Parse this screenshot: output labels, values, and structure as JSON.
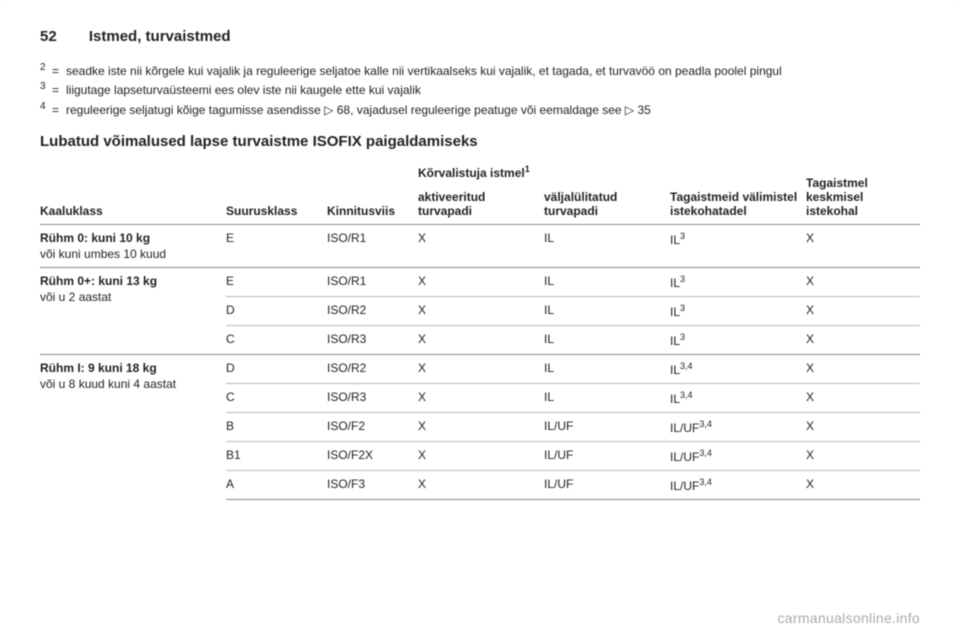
{
  "header": {
    "page_number": "52",
    "title": "Istmed, turvaistmed"
  },
  "footnotes": [
    {
      "sup": "2",
      "text": "seadke iste nii kõrgele kui vajalik ja reguleerige seljatoe kalle nii vertikaalseks kui vajalik, et tagada, et turvavöö on peadla poolel pingul"
    },
    {
      "sup": "3",
      "text": "liigutage lapseturvaüsteemi ees olev iste nii kaugele ette kui vajalik"
    },
    {
      "sup": "4",
      "text": "reguleerige seljatugi kõige tagumisse asendisse ▷ 68, vajadusel reguleerige peatuge või eemaldage see ▷ 35"
    }
  ],
  "subheading": "Lubatud võimalused lapse turvaistme ISOFIX paigaldamiseks",
  "table": {
    "head": {
      "weight": "Kaaluklass",
      "size": "Suurusklass",
      "fixture": "Kinnitusviis",
      "front_group": "Kõrvalistuja istmel",
      "front_group_sup": "1",
      "front_off": "aktiveeritud turvapadi",
      "front_on": "väljalülitatud turvapadi",
      "rear_outer": "Tagaistmeid välimistel istekohatadel",
      "rear_center": "Tagaistmel keskmisel istekohal"
    },
    "groups": [
      {
        "label": "Rühm 0: kuni 10 kg",
        "sublabel": "või kuni umbes 10 kuud",
        "rows": [
          {
            "size": "E",
            "fix": "ISO/R1",
            "f1": "X",
            "f2": "IL",
            "r1": "IL",
            "r1_sup": "3",
            "r2": "X"
          }
        ]
      },
      {
        "label": "Rühm 0+: kuni 13 kg",
        "sublabel": "või u 2 aastat",
        "rows": [
          {
            "size": "E",
            "fix": "ISO/R1",
            "f1": "X",
            "f2": "IL",
            "r1": "IL",
            "r1_sup": "3",
            "r2": "X"
          },
          {
            "size": "D",
            "fix": "ISO/R2",
            "f1": "X",
            "f2": "IL",
            "r1": "IL",
            "r1_sup": "3",
            "r2": "X"
          },
          {
            "size": "C",
            "fix": "ISO/R3",
            "f1": "X",
            "f2": "IL",
            "r1": "IL",
            "r1_sup": "3",
            "r2": "X"
          }
        ]
      },
      {
        "label": "Rühm I: 9 kuni 18 kg",
        "sublabel": "või u 8 kuud kuni 4 aastat",
        "rows": [
          {
            "size": "D",
            "fix": "ISO/R2",
            "f1": "X",
            "f2": "IL",
            "r1": "IL",
            "r1_sup": "3,4",
            "r2": "X"
          },
          {
            "size": "C",
            "fix": "ISO/R3",
            "f1": "X",
            "f2": "IL",
            "r1": "IL",
            "r1_sup": "3,4",
            "r2": "X"
          },
          {
            "size": "B",
            "fix": "ISO/F2",
            "f1": "X",
            "f2": "IL/UF",
            "r1": "IL/UF",
            "r1_sup": "3,4",
            "r2": "X"
          },
          {
            "size": "B1",
            "fix": "ISO/F2X",
            "f1": "X",
            "f2": "IL/UF",
            "r1": "IL/UF",
            "r1_sup": "3,4",
            "r2": "X"
          },
          {
            "size": "A",
            "fix": "ISO/F3",
            "f1": "X",
            "f2": "IL/UF",
            "r1": "IL/UF",
            "r1_sup": "3,4",
            "r2": "X"
          }
        ]
      }
    ]
  },
  "watermark": "carmanualsonline.info"
}
